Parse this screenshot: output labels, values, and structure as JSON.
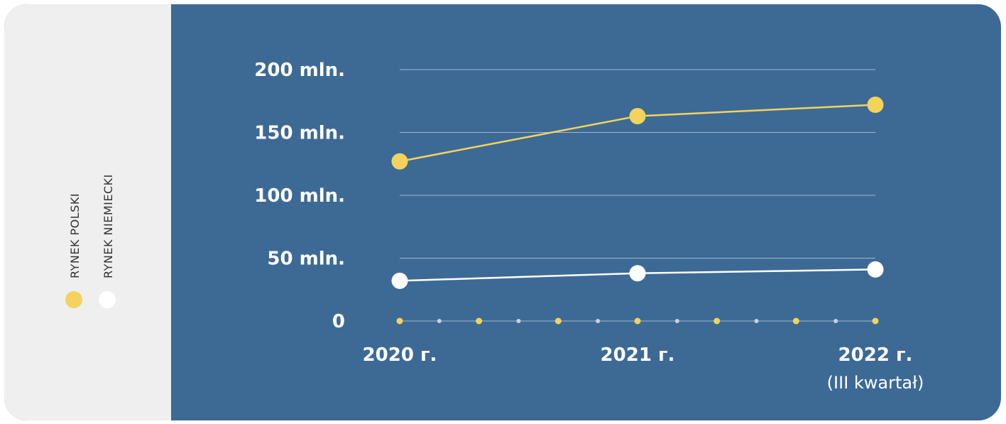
{
  "colors": {
    "background": "#3d6a95",
    "panel": "#efefef",
    "grid": "#9fb6cc",
    "polski": "#f3d35c",
    "niemiecki": "#ffffff",
    "axis_dot_small": "#c9d3dd"
  },
  "legend": {
    "items": [
      {
        "label": "RYNEK POLSKI",
        "color": "#f3d35c"
      },
      {
        "label": "RYNEK NIEMIECKI",
        "color": "#ffffff"
      }
    ]
  },
  "chart_data": {
    "type": "line",
    "title": "",
    "xlabel": "",
    "ylabel": "",
    "categories": [
      "2020 г.",
      "2021 г.",
      "2022 г."
    ],
    "category_notes": [
      "",
      "",
      "(III kwartał)"
    ],
    "y_ticks": [
      "0",
      "50 mln.",
      "100 mln.",
      "150 mln.",
      "200 mln."
    ],
    "y_tick_values": [
      0,
      50,
      100,
      150,
      200
    ],
    "ylim": [
      0,
      200
    ],
    "grid": true,
    "legend_position": "left",
    "series": [
      {
        "name": "RYNEK POLSKI",
        "color": "#f3d35c",
        "values": [
          127,
          163,
          172
        ]
      },
      {
        "name": "RYNEK NIEMIECKI",
        "color": "#ffffff",
        "values": [
          32,
          38,
          41
        ]
      }
    ]
  }
}
